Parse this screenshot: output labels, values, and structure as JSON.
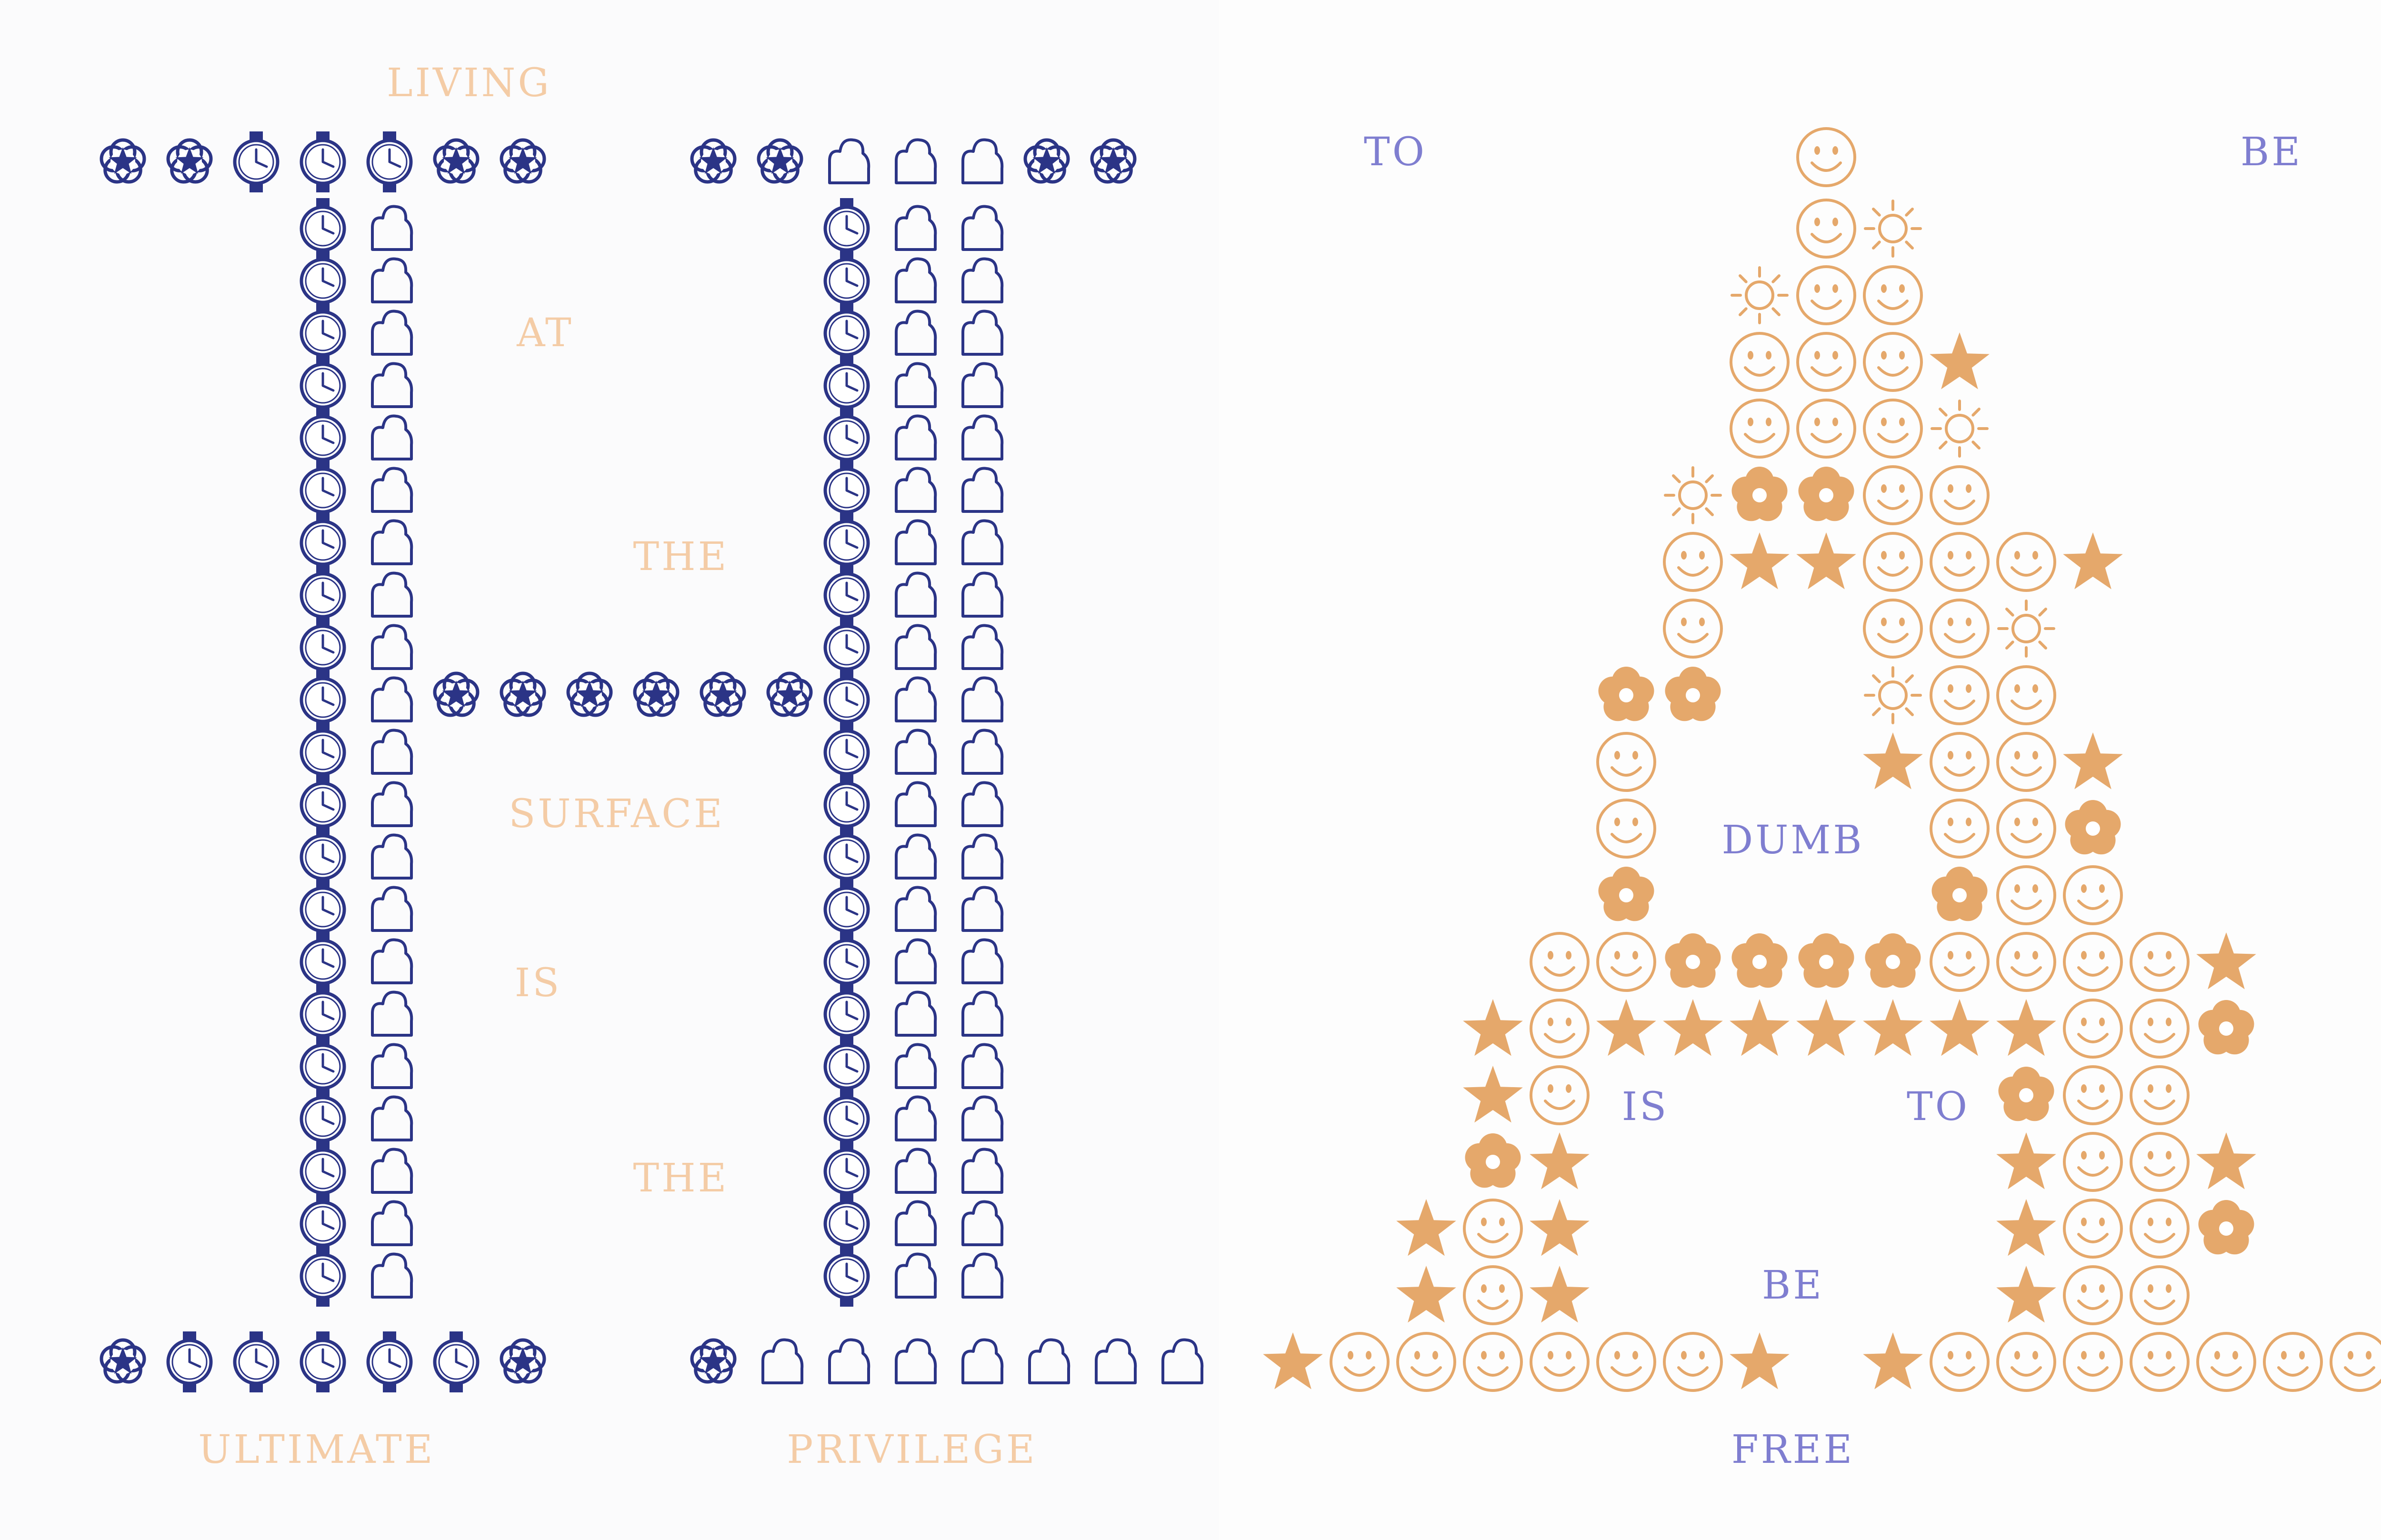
{
  "colors": {
    "navy": "#2b3486",
    "orange": "#e5a86b",
    "peach_text": "#f4cca6",
    "violet_text": "#7f7ed0",
    "paper": "#fbfbfc"
  },
  "icons": [
    "flower-star-icon",
    "watch-icon",
    "cloud-icon",
    "smiley-icon",
    "sun-icon",
    "star-icon",
    "flower-icon"
  ],
  "letter_h": {
    "words": [
      "LIVING",
      "AT",
      "THE",
      "SURFACE",
      "IS",
      "THE",
      "ULTIMATE",
      "PRIVILEGE"
    ]
  },
  "letter_a": {
    "words": [
      "TO",
      "BE",
      "DUMB",
      "IS",
      "TO",
      "BE",
      "FREE"
    ]
  }
}
